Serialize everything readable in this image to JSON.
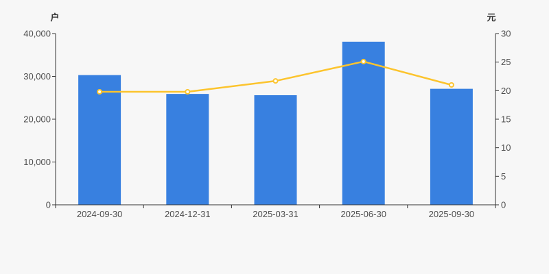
{
  "chart_data": {
    "type": "bar+line",
    "background_color": "#f7f7f7",
    "grid": false,
    "legend": null,
    "title": "",
    "categories": [
      "2024-09-30",
      "2024-12-31",
      "2025-03-31",
      "2025-06-30",
      "2025-09-30"
    ],
    "left_axis": {
      "unit_label": "户",
      "min": 0,
      "max": 40000,
      "tick_step": 10000,
      "tick_values": [
        0,
        10000,
        20000,
        30000,
        40000
      ],
      "tick_labels": [
        "0",
        "10,000",
        "20,000",
        "30,000",
        "40,000"
      ]
    },
    "right_axis": {
      "unit_label": "元",
      "min": 0,
      "max": 30,
      "tick_step": 5,
      "tick_values": [
        0,
        5,
        10,
        15,
        20,
        25,
        30
      ],
      "tick_labels": [
        "0",
        "5",
        "10",
        "15",
        "20",
        "25",
        "30"
      ]
    },
    "series": [
      {
        "kind": "bar",
        "y_axis": "left",
        "unit": "户",
        "color": "#3880e0",
        "values": [
          30300,
          25900,
          25600,
          38100,
          27100
        ]
      },
      {
        "kind": "line",
        "y_axis": "right",
        "unit": "元",
        "color": "#fcc42d",
        "marker": "circle-white-fill",
        "values": [
          19.8,
          19.8,
          21.7,
          25.1,
          21.0
        ]
      }
    ],
    "axis_line_color": "#333333",
    "tick_label_color": "#4d4d4d"
  }
}
